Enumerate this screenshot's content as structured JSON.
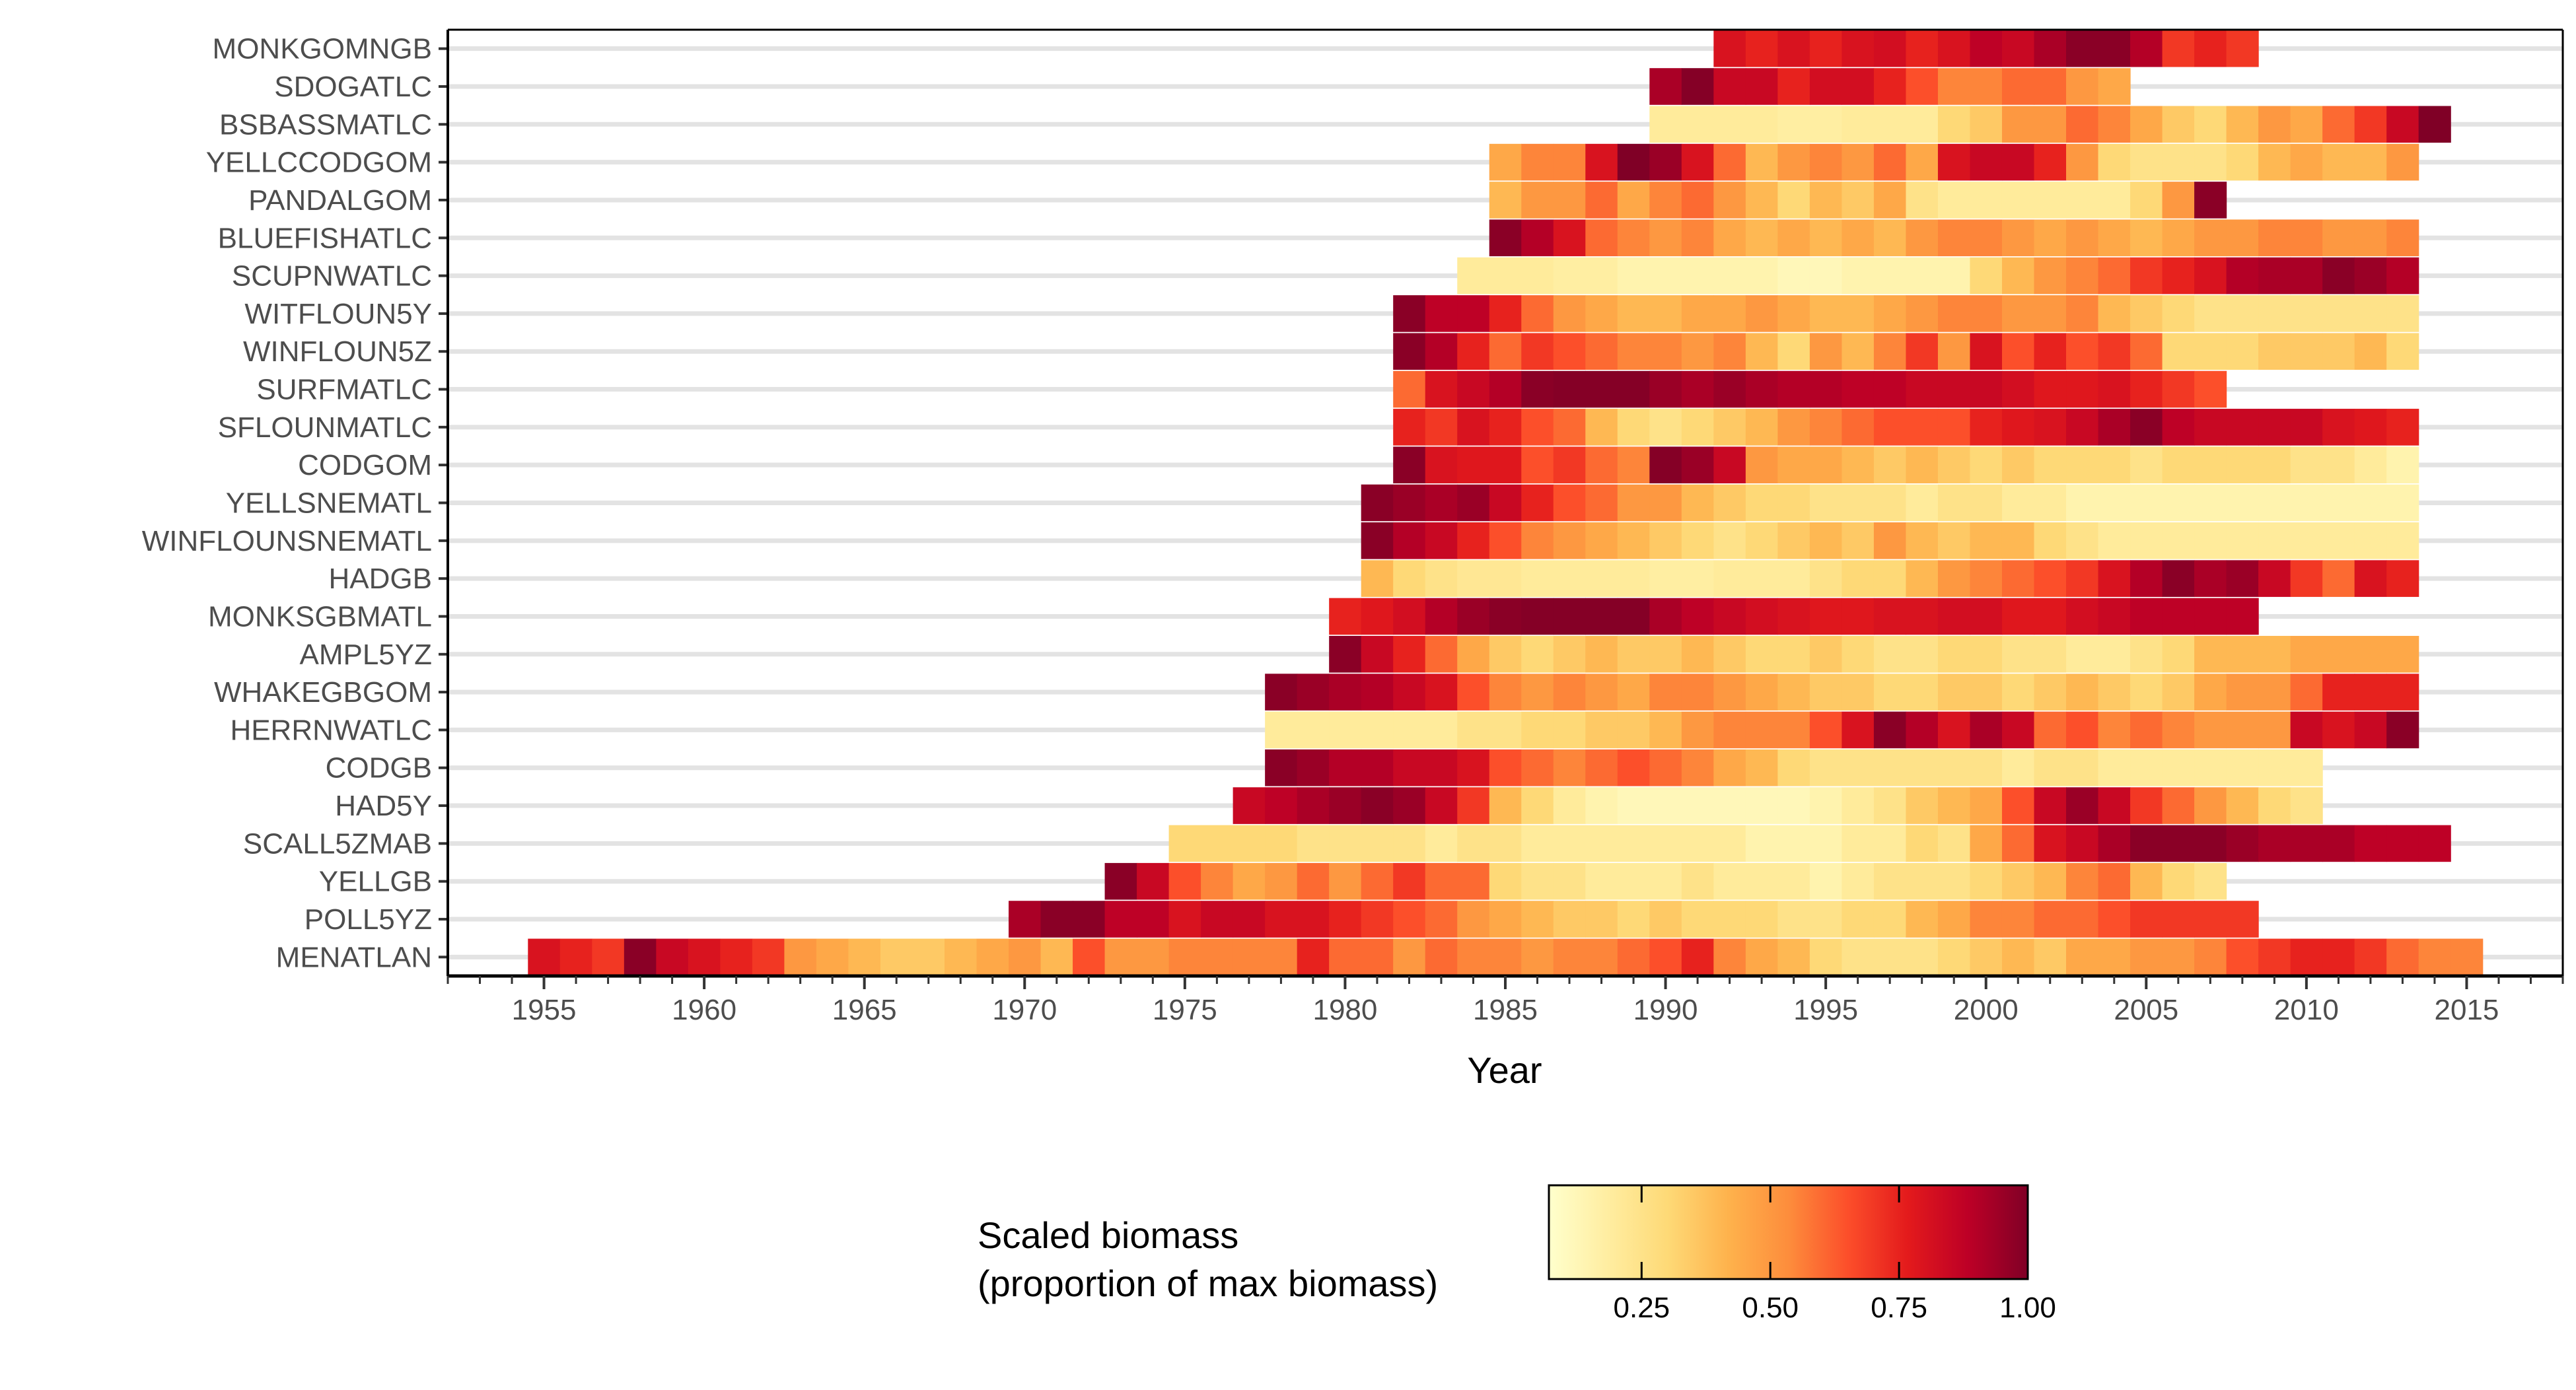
{
  "chart_data": {
    "type": "heatmap",
    "xlabel": "Year",
    "x_ticks": [
      1955,
      1960,
      1965,
      1970,
      1975,
      1980,
      1985,
      1990,
      1995,
      2000,
      2005,
      2010,
      2015
    ],
    "xlim": [
      1952,
      2018
    ],
    "legend": {
      "title_lines": [
        "Scaled biomass",
        "(proportion of max biomass)"
      ],
      "ticks": [
        0.25,
        0.5,
        0.75,
        1.0
      ],
      "tick_labels": [
        "0.25",
        "0.50",
        "0.75",
        "1.00"
      ],
      "range": [
        0.07,
        1.0
      ],
      "placement": "bottom"
    },
    "color_stops": [
      "#ffffcc",
      "#ffeda0",
      "#fed976",
      "#feb24c",
      "#fd8d3c",
      "#fc4e2a",
      "#e31a1c",
      "#bd0026",
      "#800026"
    ],
    "stocks": [
      {
        "name": "MONKGOMNGB",
        "start": 1992,
        "values": [
          0.8,
          0.75,
          0.8,
          0.75,
          0.8,
          0.82,
          0.75,
          0.8,
          0.88,
          0.85,
          0.92,
          0.98,
          0.98,
          0.9,
          0.7,
          0.75,
          0.7
        ]
      },
      {
        "name": "SDOGATLC",
        "start": 1990,
        "values": [
          0.92,
          0.99,
          0.85,
          0.85,
          0.75,
          0.82,
          0.82,
          0.75,
          0.65,
          0.55,
          0.55,
          0.6,
          0.6,
          0.5,
          0.45
        ]
      },
      {
        "name": "BSBASSMATLC",
        "start": 1990,
        "values": [
          0.2,
          0.2,
          0.2,
          0.2,
          0.18,
          0.18,
          0.2,
          0.2,
          0.2,
          0.3,
          0.35,
          0.5,
          0.5,
          0.6,
          0.55,
          0.45,
          0.35,
          0.3,
          0.4,
          0.5,
          0.45,
          0.6,
          0.7,
          0.85,
          1.0
        ]
      },
      {
        "name": "YELLCCODGOM",
        "start": 1985,
        "values": [
          0.45,
          0.55,
          0.55,
          0.8,
          1.0,
          0.95,
          0.8,
          0.6,
          0.4,
          0.5,
          0.55,
          0.5,
          0.6,
          0.45,
          0.8,
          0.85,
          0.85,
          0.75,
          0.5,
          0.3,
          0.25,
          0.25,
          0.25,
          0.3,
          0.4,
          0.45,
          0.4,
          0.4,
          0.5
        ]
      },
      {
        "name": "PANDALGOM",
        "start": 1985,
        "values": [
          0.4,
          0.5,
          0.5,
          0.6,
          0.45,
          0.55,
          0.6,
          0.5,
          0.4,
          0.3,
          0.4,
          0.35,
          0.45,
          0.25,
          0.2,
          0.2,
          0.2,
          0.2,
          0.2,
          0.2,
          0.3,
          0.5,
          0.98
        ]
      },
      {
        "name": "BLUEFISHATLC",
        "start": 1985,
        "values": [
          0.98,
          0.9,
          0.8,
          0.6,
          0.55,
          0.5,
          0.55,
          0.45,
          0.4,
          0.45,
          0.4,
          0.45,
          0.4,
          0.5,
          0.55,
          0.55,
          0.5,
          0.45,
          0.5,
          0.45,
          0.4,
          0.45,
          0.5,
          0.5,
          0.55,
          0.55,
          0.5,
          0.5,
          0.55
        ]
      },
      {
        "name": "SCUPNWATLC",
        "start": 1984,
        "values": [
          0.2,
          0.2,
          0.2,
          0.18,
          0.18,
          0.15,
          0.15,
          0.15,
          0.15,
          0.15,
          0.12,
          0.12,
          0.15,
          0.15,
          0.15,
          0.15,
          0.3,
          0.4,
          0.5,
          0.55,
          0.6,
          0.7,
          0.75,
          0.8,
          0.9,
          0.92,
          0.92,
          0.98,
          0.95,
          0.9
        ]
      },
      {
        "name": "WITFLOUN5Y",
        "start": 1982,
        "values": [
          0.98,
          0.88,
          0.88,
          0.75,
          0.6,
          0.5,
          0.45,
          0.4,
          0.4,
          0.45,
          0.45,
          0.5,
          0.45,
          0.4,
          0.4,
          0.45,
          0.5,
          0.55,
          0.55,
          0.5,
          0.5,
          0.55,
          0.4,
          0.35,
          0.3,
          0.25,
          0.25,
          0.25,
          0.25,
          0.25,
          0.25,
          0.25
        ]
      },
      {
        "name": "WINFLOUN5Z",
        "start": 1982,
        "values": [
          0.98,
          0.9,
          0.75,
          0.6,
          0.7,
          0.65,
          0.6,
          0.55,
          0.55,
          0.5,
          0.55,
          0.4,
          0.3,
          0.5,
          0.4,
          0.55,
          0.7,
          0.5,
          0.8,
          0.65,
          0.75,
          0.65,
          0.7,
          0.6,
          0.3,
          0.3,
          0.3,
          0.35,
          0.35,
          0.35,
          0.4,
          0.3
        ]
      },
      {
        "name": "SURFMATLC",
        "start": 1982,
        "values": [
          0.6,
          0.8,
          0.85,
          0.9,
          0.98,
          0.99,
          0.99,
          0.99,
          0.95,
          0.92,
          0.95,
          0.92,
          0.9,
          0.9,
          0.88,
          0.88,
          0.85,
          0.85,
          0.85,
          0.82,
          0.78,
          0.78,
          0.8,
          0.75,
          0.7,
          0.65
        ]
      },
      {
        "name": "SFLOUNMATLC",
        "start": 1982,
        "values": [
          0.75,
          0.7,
          0.8,
          0.75,
          0.65,
          0.6,
          0.4,
          0.3,
          0.25,
          0.3,
          0.35,
          0.4,
          0.5,
          0.55,
          0.6,
          0.65,
          0.65,
          0.65,
          0.75,
          0.78,
          0.8,
          0.85,
          0.92,
          0.98,
          0.88,
          0.85,
          0.85,
          0.85,
          0.85,
          0.8,
          0.78,
          0.75
        ]
      },
      {
        "name": "CODGOM",
        "start": 1982,
        "values": [
          0.98,
          0.8,
          0.78,
          0.78,
          0.65,
          0.7,
          0.6,
          0.55,
          0.99,
          0.95,
          0.85,
          0.5,
          0.45,
          0.45,
          0.4,
          0.35,
          0.4,
          0.35,
          0.3,
          0.35,
          0.3,
          0.3,
          0.3,
          0.25,
          0.3,
          0.3,
          0.3,
          0.3,
          0.25,
          0.25,
          0.2,
          0.15
        ]
      },
      {
        "name": "YELLSNEMATL",
        "start": 1981,
        "values": [
          0.98,
          0.95,
          0.92,
          0.95,
          0.85,
          0.75,
          0.65,
          0.6,
          0.5,
          0.5,
          0.4,
          0.35,
          0.3,
          0.3,
          0.25,
          0.25,
          0.25,
          0.2,
          0.25,
          0.25,
          0.2,
          0.2,
          0.15,
          0.15,
          0.15,
          0.15,
          0.15,
          0.15,
          0.15,
          0.15,
          0.15,
          0.15,
          0.15
        ]
      },
      {
        "name": "WINFLOUNSNEMATL",
        "start": 1981,
        "values": [
          0.98,
          0.9,
          0.85,
          0.75,
          0.65,
          0.55,
          0.5,
          0.45,
          0.4,
          0.35,
          0.3,
          0.25,
          0.3,
          0.35,
          0.4,
          0.35,
          0.5,
          0.4,
          0.35,
          0.4,
          0.4,
          0.3,
          0.25,
          0.2,
          0.2,
          0.2,
          0.2,
          0.2,
          0.2,
          0.2,
          0.2,
          0.2,
          0.2
        ]
      },
      {
        "name": "HADGB",
        "start": 1981,
        "values": [
          0.4,
          0.3,
          0.25,
          0.22,
          0.22,
          0.2,
          0.2,
          0.2,
          0.2,
          0.18,
          0.18,
          0.2,
          0.2,
          0.2,
          0.25,
          0.3,
          0.3,
          0.4,
          0.5,
          0.55,
          0.6,
          0.65,
          0.7,
          0.8,
          0.9,
          0.98,
          0.92,
          0.95,
          0.85,
          0.7,
          0.6,
          0.8,
          0.75
        ]
      },
      {
        "name": "MONKSGBMATL",
        "start": 1980,
        "values": [
          0.75,
          0.78,
          0.82,
          0.9,
          0.95,
          0.98,
          0.99,
          0.99,
          0.99,
          0.99,
          0.92,
          0.88,
          0.85,
          0.82,
          0.8,
          0.78,
          0.78,
          0.8,
          0.8,
          0.82,
          0.82,
          0.78,
          0.78,
          0.82,
          0.85,
          0.88,
          0.88,
          0.88,
          0.88
        ]
      },
      {
        "name": "AMPL5YZ",
        "start": 1980,
        "values": [
          0.98,
          0.85,
          0.75,
          0.6,
          0.45,
          0.35,
          0.3,
          0.35,
          0.4,
          0.35,
          0.35,
          0.4,
          0.35,
          0.3,
          0.3,
          0.35,
          0.3,
          0.25,
          0.25,
          0.3,
          0.3,
          0.25,
          0.25,
          0.2,
          0.2,
          0.25,
          0.3,
          0.4,
          0.4,
          0.4,
          0.45,
          0.45,
          0.45,
          0.45
        ]
      },
      {
        "name": "WHAKEGBGOM",
        "start": 1978,
        "values": [
          0.98,
          0.95,
          0.92,
          0.9,
          0.85,
          0.8,
          0.65,
          0.55,
          0.5,
          0.55,
          0.5,
          0.45,
          0.55,
          0.55,
          0.5,
          0.45,
          0.4,
          0.35,
          0.35,
          0.3,
          0.3,
          0.35,
          0.35,
          0.3,
          0.35,
          0.4,
          0.35,
          0.3,
          0.35,
          0.45,
          0.5,
          0.5,
          0.6,
          0.75,
          0.75,
          0.75
        ]
      },
      {
        "name": "HERRNWATLC",
        "start": 1978,
        "values": [
          0.2,
          0.2,
          0.2,
          0.2,
          0.2,
          0.2,
          0.25,
          0.25,
          0.3,
          0.3,
          0.35,
          0.35,
          0.4,
          0.5,
          0.55,
          0.55,
          0.55,
          0.65,
          0.8,
          0.98,
          0.9,
          0.8,
          0.92,
          0.85,
          0.6,
          0.65,
          0.55,
          0.6,
          0.55,
          0.5,
          0.5,
          0.5,
          0.85,
          0.8,
          0.85,
          0.98
        ]
      },
      {
        "name": "CODGB",
        "start": 1978,
        "values": [
          0.98,
          0.95,
          0.9,
          0.9,
          0.85,
          0.85,
          0.8,
          0.65,
          0.6,
          0.55,
          0.6,
          0.65,
          0.6,
          0.55,
          0.45,
          0.4,
          0.3,
          0.25,
          0.25,
          0.25,
          0.25,
          0.25,
          0.25,
          0.2,
          0.25,
          0.25,
          0.2,
          0.2,
          0.2,
          0.2,
          0.2,
          0.2,
          0.2
        ]
      },
      {
        "name": "HAD5Y",
        "start": 1977,
        "values": [
          0.85,
          0.88,
          0.92,
          0.95,
          0.98,
          0.95,
          0.85,
          0.7,
          0.4,
          0.3,
          0.2,
          0.15,
          0.12,
          0.12,
          0.12,
          0.12,
          0.12,
          0.12,
          0.15,
          0.2,
          0.25,
          0.35,
          0.4,
          0.45,
          0.65,
          0.85,
          0.95,
          0.85,
          0.7,
          0.6,
          0.5,
          0.4,
          0.3,
          0.25
        ]
      },
      {
        "name": "SCALL5ZMAB",
        "start": 1975,
        "values": [
          0.3,
          0.3,
          0.3,
          0.3,
          0.25,
          0.25,
          0.25,
          0.25,
          0.2,
          0.25,
          0.25,
          0.2,
          0.2,
          0.2,
          0.2,
          0.2,
          0.2,
          0.2,
          0.15,
          0.15,
          0.15,
          0.2,
          0.2,
          0.3,
          0.25,
          0.45,
          0.6,
          0.8,
          0.85,
          0.92,
          0.98,
          0.98,
          0.98,
          0.95,
          0.92,
          0.92,
          0.92,
          0.88,
          0.88,
          0.88
        ]
      },
      {
        "name": "YELLGB",
        "start": 1973,
        "values": [
          0.98,
          0.85,
          0.65,
          0.55,
          0.45,
          0.5,
          0.6,
          0.5,
          0.6,
          0.7,
          0.6,
          0.6,
          0.3,
          0.25,
          0.25,
          0.2,
          0.2,
          0.2,
          0.25,
          0.2,
          0.2,
          0.2,
          0.15,
          0.2,
          0.25,
          0.25,
          0.25,
          0.3,
          0.35,
          0.4,
          0.55,
          0.6,
          0.4,
          0.3,
          0.25
        ]
      },
      {
        "name": "POLL5YZ",
        "start": 1970,
        "values": [
          0.92,
          0.98,
          0.98,
          0.88,
          0.88,
          0.8,
          0.85,
          0.85,
          0.8,
          0.8,
          0.75,
          0.7,
          0.65,
          0.6,
          0.5,
          0.45,
          0.4,
          0.35,
          0.35,
          0.3,
          0.35,
          0.3,
          0.3,
          0.3,
          0.25,
          0.25,
          0.3,
          0.3,
          0.4,
          0.45,
          0.55,
          0.55,
          0.6,
          0.6,
          0.65,
          0.7,
          0.7,
          0.7,
          0.7
        ]
      },
      {
        "name": "MENATLAN",
        "start": 1955,
        "values": [
          0.8,
          0.75,
          0.7,
          0.98,
          0.85,
          0.8,
          0.75,
          0.7,
          0.5,
          0.45,
          0.4,
          0.35,
          0.35,
          0.4,
          0.45,
          0.5,
          0.4,
          0.65,
          0.5,
          0.5,
          0.55,
          0.55,
          0.55,
          0.55,
          0.75,
          0.6,
          0.6,
          0.5,
          0.6,
          0.55,
          0.55,
          0.5,
          0.55,
          0.55,
          0.6,
          0.65,
          0.75,
          0.55,
          0.45,
          0.4,
          0.3,
          0.25,
          0.25,
          0.25,
          0.3,
          0.35,
          0.4,
          0.35,
          0.45,
          0.45,
          0.5,
          0.5,
          0.55,
          0.65,
          0.7,
          0.75,
          0.75,
          0.7,
          0.6,
          0.55,
          0.55
        ]
      }
    ]
  }
}
